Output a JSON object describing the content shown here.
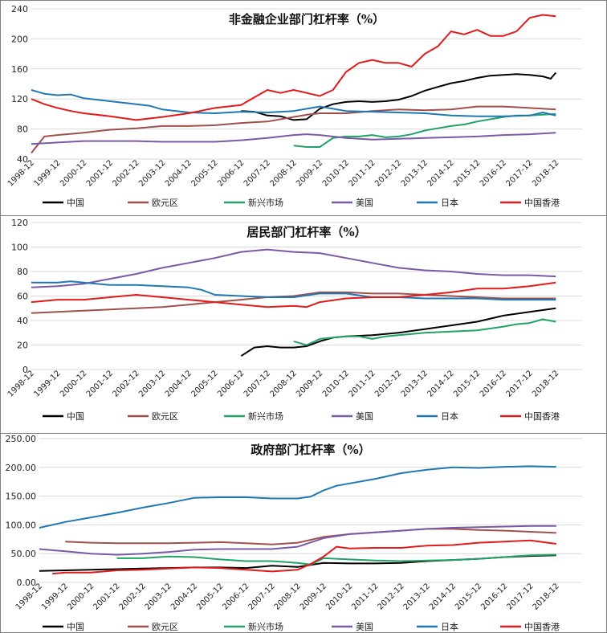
{
  "chart_data": [
    {
      "type": "line",
      "title": "非金融企业部门杠杆率（%）",
      "xlabel": "",
      "ylabel": "",
      "ylim": [
        40,
        240
      ],
      "yticks": [
        40,
        80,
        120,
        160,
        200,
        240
      ],
      "ytick_labels": [
        "40",
        "80",
        "120",
        "160",
        "200",
        "240"
      ],
      "x_tick_labels": [
        "1998-12",
        "1999-12",
        "2000-12",
        "2001-12",
        "2002-12",
        "2003-12",
        "2004-12",
        "2005-12",
        "2006-12",
        "2007-12",
        "2008-12",
        "2009-12",
        "2010-12",
        "2011-12",
        "2012-12",
        "2013-12",
        "2014-12",
        "2015-12",
        "2016-12",
        "2017-12",
        "2018-12"
      ],
      "grid": true,
      "legend": "bottom",
      "series": [
        {
          "name": "中国",
          "color": "#000000",
          "x": [
            2006.0,
            2006.5,
            2007.0,
            2007.5,
            2008.0,
            2008.5,
            2009.0,
            2009.5,
            2010.0,
            2010.5,
            2011.0,
            2011.5,
            2012.0,
            2012.5,
            2013.0,
            2013.5,
            2014.0,
            2014.5,
            2015.0,
            2015.5,
            2016.0,
            2016.5,
            2017.0,
            2017.5,
            2017.8,
            2018.0
          ],
          "values": [
            104,
            103,
            98,
            97,
            92,
            93,
            107,
            113,
            116,
            117,
            116,
            117,
            119,
            124,
            131,
            136,
            141,
            144,
            148,
            151,
            152,
            153,
            152,
            150,
            147,
            155
          ]
        },
        {
          "name": "欧元区",
          "color": "#a0504b",
          "x": [
            1998.0,
            1998.5,
            1999.0,
            2000.0,
            2001.0,
            2002.0,
            2003.0,
            2004.0,
            2005.0,
            2006.0,
            2007.0,
            2008.0,
            2008.5,
            2009.0,
            2010.0,
            2011.0,
            2012.0,
            2013.0,
            2014.0,
            2015.0,
            2016.0,
            2017.0,
            2018.0
          ],
          "values": [
            48,
            70,
            72,
            75,
            79,
            81,
            84,
            84,
            85,
            88,
            90,
            96,
            99,
            101,
            101,
            104,
            106,
            105,
            106,
            110,
            110,
            108,
            106
          ]
        },
        {
          "name": "新兴市场",
          "color": "#21a366",
          "x": [
            2008.0,
            2008.5,
            2009.0,
            2009.5,
            2010.0,
            2010.5,
            2011.0,
            2011.5,
            2012.0,
            2012.5,
            2013.0,
            2013.5,
            2014.0,
            2014.5,
            2015.0,
            2015.5,
            2016.0,
            2016.5,
            2017.0,
            2017.5,
            2018.0
          ],
          "values": [
            58,
            56,
            56,
            68,
            70,
            70,
            72,
            69,
            70,
            73,
            78,
            81,
            84,
            86,
            90,
            93,
            96,
            98,
            98,
            99,
            100
          ]
        },
        {
          "name": "美国",
          "color": "#7a5aa6",
          "x": [
            1998.0,
            1999.0,
            2000.0,
            2001.0,
            2002.0,
            2003.0,
            2004.0,
            2005.0,
            2006.0,
            2007.0,
            2008.0,
            2008.5,
            2009.0,
            2010.0,
            2011.0,
            2012.0,
            2013.0,
            2014.0,
            2015.0,
            2016.0,
            2017.0,
            2018.0
          ],
          "values": [
            60,
            62,
            64,
            64,
            64,
            63,
            63,
            63,
            65,
            68,
            72,
            73,
            72,
            68,
            66,
            67,
            68,
            69,
            70,
            72,
            73,
            75
          ]
        },
        {
          "name": "日本",
          "color": "#1f78b4",
          "x": [
            1998.0,
            1998.5,
            1999.0,
            1999.5,
            2000.0,
            2001.0,
            2002.0,
            2002.5,
            2003.0,
            2004.0,
            2005.0,
            2006.0,
            2007.0,
            2008.0,
            2009.0,
            2009.5,
            2010.0,
            2011.0,
            2012.0,
            2013.0,
            2014.0,
            2015.0,
            2016.0,
            2017.0,
            2017.5,
            2018.0
          ],
          "values": [
            132,
            127,
            125,
            126,
            121,
            117,
            113,
            111,
            106,
            102,
            101,
            103,
            102,
            104,
            110,
            107,
            104,
            103,
            102,
            101,
            98,
            97,
            97,
            98,
            102,
            98
          ]
        },
        {
          "name": "中国香港",
          "color": "#e31a1c",
          "x": [
            1998.0,
            1998.5,
            1999.0,
            1999.5,
            2000.0,
            2001.0,
            2002.0,
            2003.0,
            2004.0,
            2005.0,
            2006.0,
            2006.5,
            2007.0,
            2007.5,
            2008.0,
            2008.5,
            2009.0,
            2009.5,
            2010.0,
            2010.5,
            2011.0,
            2011.5,
            2012.0,
            2012.5,
            2013.0,
            2013.5,
            2014.0,
            2014.5,
            2015.0,
            2015.5,
            2016.0,
            2016.5,
            2017.0,
            2017.5,
            2018.0
          ],
          "values": [
            120,
            113,
            108,
            104,
            101,
            97,
            92,
            96,
            101,
            108,
            112,
            122,
            132,
            128,
            132,
            128,
            124,
            132,
            156,
            168,
            172,
            168,
            168,
            163,
            180,
            190,
            210,
            206,
            212,
            204,
            204,
            210,
            228,
            232,
            230
          ]
        }
      ]
    },
    {
      "type": "line",
      "title": "居民部门杠杆率（%）",
      "xlabel": "",
      "ylabel": "",
      "ylim": [
        0,
        120
      ],
      "yticks": [
        0,
        20,
        40,
        60,
        80,
        100,
        120
      ],
      "ytick_labels": [
        "0",
        "20",
        "40",
        "60",
        "80",
        "100",
        "120"
      ],
      "x_tick_labels": [
        "1998-12",
        "1999-12",
        "2000-12",
        "2001-12",
        "2002-12",
        "2003-12",
        "2004-12",
        "2005-12",
        "2006-12",
        "2007-12",
        "2008-12",
        "2009-12",
        "2010-12",
        "2011-12",
        "2012-12",
        "2013-12",
        "2014-12",
        "2015-12",
        "2016-12",
        "2017-12",
        "2018-12"
      ],
      "grid": true,
      "legend": "bottom",
      "series": [
        {
          "name": "中国",
          "color": "#000000",
          "x": [
            2006.0,
            2006.5,
            2007.0,
            2007.5,
            2008.0,
            2008.5,
            2009.0,
            2009.5,
            2010.0,
            2011.0,
            2012.0,
            2013.0,
            2014.0,
            2015.0,
            2016.0,
            2017.0,
            2018.0
          ],
          "values": [
            11,
            18,
            19,
            18,
            18,
            19,
            23,
            26,
            27,
            28,
            30,
            33,
            36,
            39,
            44,
            47,
            50
          ]
        },
        {
          "name": "欧元区",
          "color": "#a0504b",
          "x": [
            1998.0,
            1999.0,
            2000.0,
            2001.0,
            2002.0,
            2003.0,
            2004.0,
            2005.0,
            2006.0,
            2007.0,
            2008.0,
            2009.0,
            2010.0,
            2011.0,
            2012.0,
            2013.0,
            2014.0,
            2015.0,
            2016.0,
            2017.0,
            2018.0
          ],
          "values": [
            46,
            47,
            48,
            49,
            50,
            51,
            53,
            55,
            57,
            59,
            60,
            63,
            63,
            62,
            62,
            61,
            60,
            59,
            58,
            58,
            58
          ]
        },
        {
          "name": "新兴市场",
          "color": "#21a366",
          "x": [
            2008.0,
            2008.5,
            2009.0,
            2009.5,
            2010.0,
            2010.5,
            2011.0,
            2011.5,
            2012.0,
            2013.0,
            2014.0,
            2015.0,
            2016.0,
            2016.5,
            2017.0,
            2017.5,
            2018.0
          ],
          "values": [
            23,
            20,
            25,
            26,
            27,
            27,
            25,
            27,
            28,
            30,
            31,
            32,
            35,
            37,
            38,
            41,
            39
          ]
        },
        {
          "name": "美国",
          "color": "#7a5aa6",
          "x": [
            1998.0,
            1999.0,
            2000.0,
            2001.0,
            2002.0,
            2003.0,
            2004.0,
            2005.0,
            2006.0,
            2007.0,
            2008.0,
            2009.0,
            2010.0,
            2011.0,
            2012.0,
            2013.0,
            2014.0,
            2015.0,
            2016.0,
            2017.0,
            2018.0
          ],
          "values": [
            67,
            68,
            70,
            74,
            78,
            83,
            87,
            91,
            96,
            98,
            96,
            95,
            91,
            87,
            83,
            81,
            80,
            78,
            77,
            77,
            76
          ]
        },
        {
          "name": "日本",
          "color": "#1f78b4",
          "x": [
            1998.0,
            1999.0,
            1999.5,
            2000.0,
            2001.0,
            2002.0,
            2003.0,
            2004.0,
            2004.5,
            2005.0,
            2006.0,
            2007.0,
            2008.0,
            2009.0,
            2010.0,
            2011.0,
            2012.0,
            2013.0,
            2014.0,
            2015.0,
            2016.0,
            2017.0,
            2018.0
          ],
          "values": [
            71,
            71,
            72,
            71,
            69,
            69,
            68,
            67,
            65,
            61,
            60,
            59,
            59,
            62,
            62,
            59,
            59,
            58,
            58,
            58,
            57,
            57,
            57
          ]
        },
        {
          "name": "中国香港",
          "color": "#e31a1c",
          "x": [
            1998.0,
            1999.0,
            2000.0,
            2001.0,
            2002.0,
            2003.0,
            2004.0,
            2005.0,
            2006.0,
            2007.0,
            2008.0,
            2008.5,
            2009.0,
            2010.0,
            2011.0,
            2012.0,
            2013.0,
            2014.0,
            2015.0,
            2016.0,
            2017.0,
            2018.0
          ],
          "values": [
            55,
            57,
            57,
            59,
            61,
            59,
            57,
            55,
            53,
            51,
            52,
            51,
            55,
            58,
            59,
            59,
            61,
            63,
            66,
            66,
            68,
            71
          ]
        }
      ]
    },
    {
      "type": "line",
      "title": "政府部门杠杆率（%）",
      "xlabel": "",
      "ylabel": "",
      "ylim": [
        0,
        250
      ],
      "yticks": [
        0,
        50,
        100,
        150,
        200,
        250
      ],
      "ytick_labels": [
        "0.00",
        "50.00",
        "100.00",
        "150.00",
        "200.00",
        "250.00"
      ],
      "x_tick_labels": [
        "1998-12",
        "1999-12",
        "2000-12",
        "2001-12",
        "2002-12",
        "2003-12",
        "2004-12",
        "2005-12",
        "2006-12",
        "2007-12",
        "2008-12",
        "2009-12",
        "2010-12",
        "2011-12",
        "2012-12",
        "2013-12",
        "2014-12",
        "2015-12",
        "2016-12",
        "2017-12",
        "2018-12"
      ],
      "grid": true,
      "legend": "bottom",
      "series": [
        {
          "name": "中国",
          "color": "#000000",
          "x": [
            1998.0,
            1999.0,
            2000.0,
            2001.0,
            2002.0,
            2003.0,
            2004.0,
            2005.0,
            2006.0,
            2007.0,
            2008.0,
            2009.0,
            2010.0,
            2011.0,
            2012.0,
            2013.0,
            2014.0,
            2015.0,
            2016.0,
            2017.0,
            2018.0
          ],
          "values": [
            20,
            21,
            22,
            23,
            24,
            25,
            26,
            26,
            25,
            29,
            27,
            34,
            33,
            33,
            34,
            37,
            39,
            41,
            44,
            46,
            47
          ]
        },
        {
          "name": "欧元区",
          "color": "#a0504b",
          "x": [
            1999.0,
            2000.0,
            2001.0,
            2002.0,
            2003.0,
            2004.0,
            2005.0,
            2006.0,
            2007.0,
            2008.0,
            2009.0,
            2010.0,
            2011.0,
            2012.0,
            2013.0,
            2014.0,
            2015.0,
            2016.0,
            2017.0,
            2018.0
          ],
          "values": [
            71,
            69,
            68,
            68,
            68,
            69,
            70,
            68,
            66,
            69,
            79,
            84,
            87,
            90,
            93,
            93,
            91,
            90,
            88,
            86
          ]
        },
        {
          "name": "新兴市场",
          "color": "#21a366",
          "x": [
            2001.0,
            2002.0,
            2003.0,
            2004.0,
            2005.0,
            2006.0,
            2007.0,
            2008.0,
            2008.5,
            2009.0,
            2010.0,
            2011.0,
            2012.0,
            2013.0,
            2014.0,
            2015.0,
            2016.0,
            2017.0,
            2018.0
          ],
          "values": [
            42,
            42,
            45,
            44,
            40,
            37,
            37,
            34,
            31,
            42,
            40,
            38,
            37,
            38,
            39,
            41,
            44,
            47,
            48
          ]
        },
        {
          "name": "美国",
          "color": "#7a5aa6",
          "x": [
            1998.0,
            1999.0,
            2000.0,
            2001.0,
            2002.0,
            2003.0,
            2004.0,
            2005.0,
            2006.0,
            2007.0,
            2008.0,
            2009.0,
            2010.0,
            2011.0,
            2012.0,
            2013.0,
            2014.0,
            2015.0,
            2016.0,
            2017.0,
            2018.0
          ],
          "values": [
            58,
            54,
            50,
            48,
            50,
            53,
            57,
            58,
            58,
            58,
            62,
            77,
            84,
            87,
            90,
            93,
            95,
            96,
            97,
            98,
            98
          ]
        },
        {
          "name": "日本",
          "color": "#1f78b4",
          "x": [
            1998.0,
            1999.0,
            2000.0,
            2001.0,
            2002.0,
            2003.0,
            2004.0,
            2005.0,
            2006.0,
            2007.0,
            2008.0,
            2008.5,
            2009.0,
            2009.5,
            2010.0,
            2011.0,
            2012.0,
            2013.0,
            2014.0,
            2015.0,
            2016.0,
            2017.0,
            2018.0
          ],
          "values": [
            95,
            105,
            113,
            121,
            130,
            138,
            147,
            148,
            148,
            146,
            146,
            149,
            160,
            168,
            172,
            180,
            190,
            196,
            200,
            199,
            201,
            202,
            201
          ]
        },
        {
          "name": "中国香港",
          "color": "#e31a1c",
          "x": [
            1998.5,
            1999.0,
            2000.0,
            2001.0,
            2002.0,
            2003.0,
            2004.0,
            2005.0,
            2006.0,
            2007.0,
            2008.0,
            2008.5,
            2009.0,
            2009.5,
            2010.0,
            2011.0,
            2012.0,
            2013.0,
            2014.0,
            2015.0,
            2016.0,
            2017.0,
            2018.0
          ],
          "values": [
            15,
            17,
            17,
            21,
            22,
            24,
            26,
            25,
            22,
            19,
            22,
            32,
            45,
            62,
            59,
            60,
            60,
            64,
            65,
            69,
            71,
            73,
            67
          ]
        }
      ]
    }
  ]
}
